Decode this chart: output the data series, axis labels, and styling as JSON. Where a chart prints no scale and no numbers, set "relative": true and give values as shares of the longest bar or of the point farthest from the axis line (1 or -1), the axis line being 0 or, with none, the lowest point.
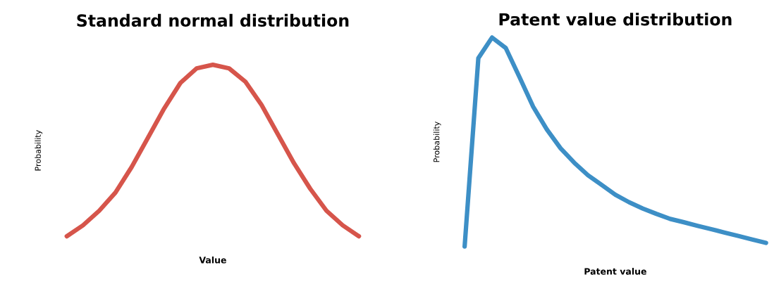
{
  "chart_data": [
    {
      "type": "line",
      "title": "Standard normal distribution",
      "xlabel": "Value",
      "ylabel": "Probability",
      "relative": true,
      "grid": false,
      "legend": false,
      "categories": [
        null,
        null,
        null,
        null,
        null,
        null,
        null,
        null,
        null,
        null,
        null,
        null,
        null,
        null,
        null,
        null,
        null,
        null,
        null
      ],
      "series": [
        {
          "color": "#d6554b",
          "values": [
            0,
            0.064,
            0.149,
            0.255,
            0.404,
            0.574,
            0.745,
            0.894,
            0.979,
            1,
            0.979,
            0.902,
            0.766,
            0.596,
            0.426,
            0.277,
            0.149,
            0.064,
            0
          ]
        }
      ]
    },
    {
      "type": "line",
      "title": "Patent value distribution",
      "xlabel": "Patent value",
      "ylabel": "Probability",
      "relative": true,
      "grid": false,
      "legend": false,
      "categories": [
        null,
        null,
        null,
        null,
        null,
        null,
        null,
        null,
        null,
        null,
        null,
        null,
        null,
        null,
        null,
        null,
        null,
        null,
        null,
        null,
        null,
        null,
        null
      ],
      "series": [
        {
          "color": "#3d8fc6",
          "values": [
            0,
            0.901,
            1,
            0.95,
            0.811,
            0.669,
            0.56,
            0.47,
            0.401,
            0.341,
            0.295,
            0.248,
            0.212,
            0.182,
            0.156,
            0.132,
            0.116,
            0.099,
            0.083,
            0.066,
            0.05,
            0.033,
            0.017
          ]
        }
      ]
    }
  ]
}
